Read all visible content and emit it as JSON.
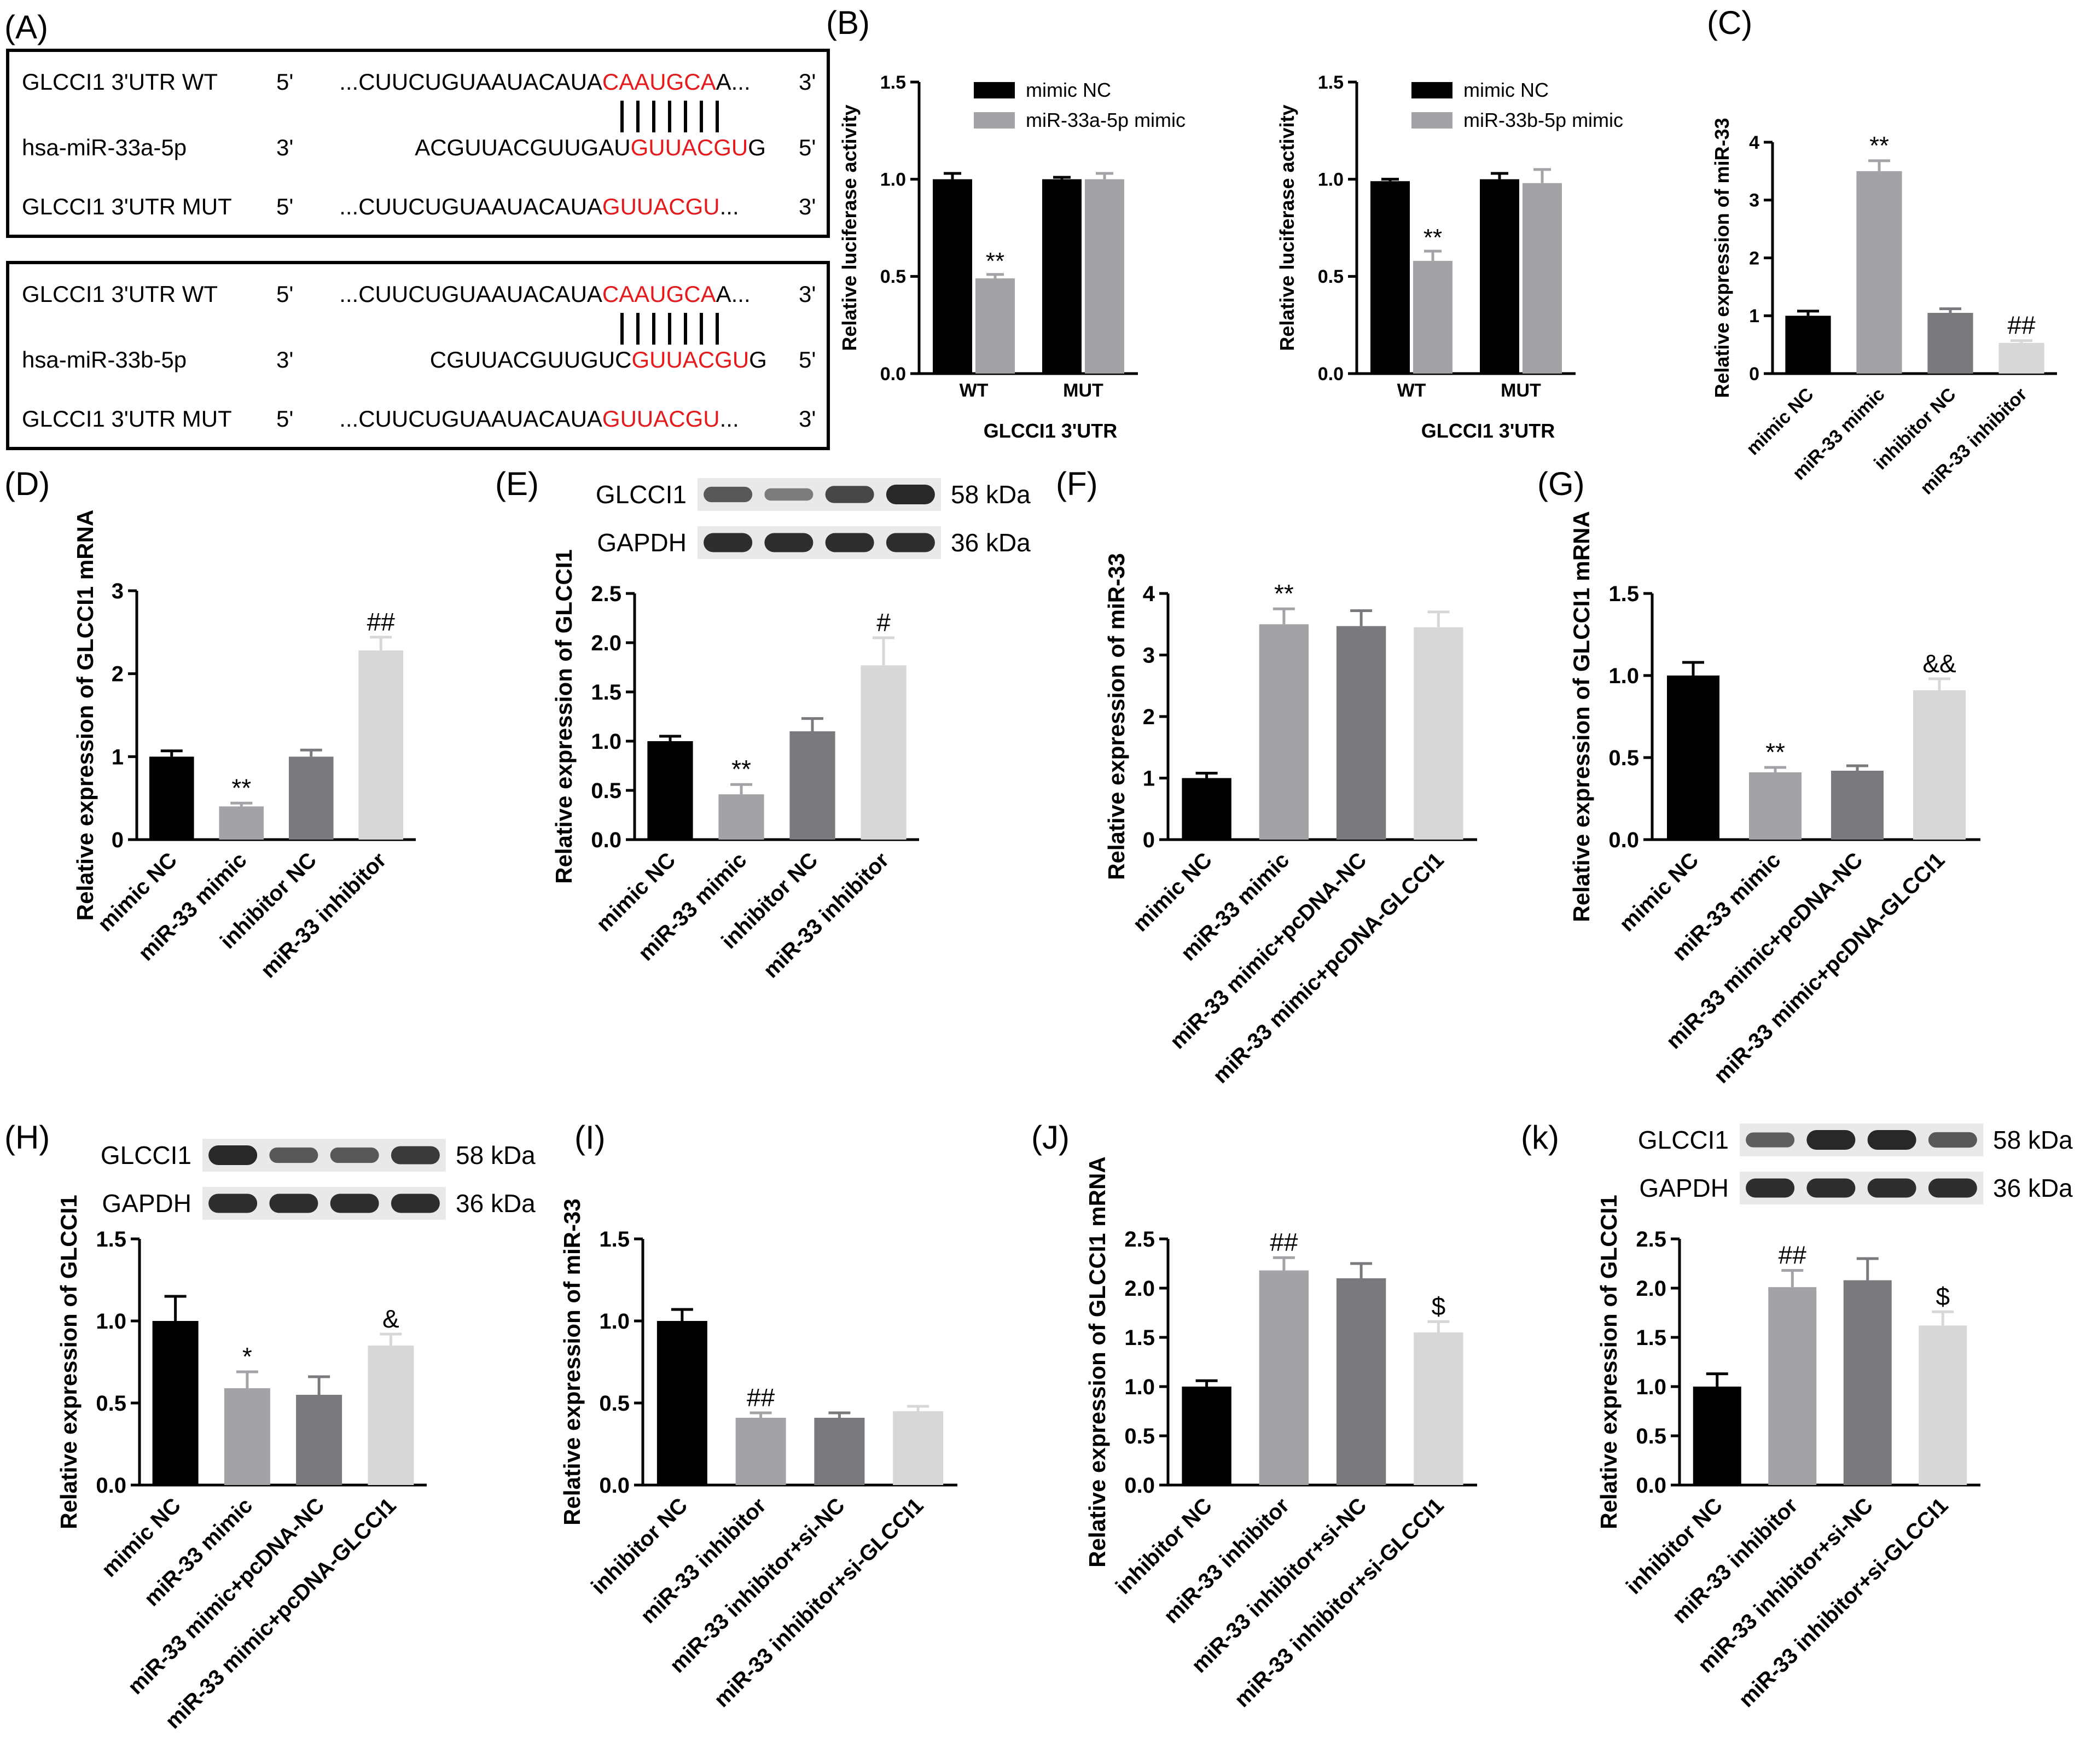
{
  "colors": {
    "black": "#000000",
    "gray": "#a3a3a7",
    "darkgray": "#7a7a7e",
    "lightgray": "#d7d7d9",
    "red": "#e41a1c",
    "panel_border": "#000000"
  },
  "panelA": {
    "letter": "(A)",
    "box1": {
      "rows": [
        {
          "label": "GLCCI1 3'UTR WT",
          "end5": "5'",
          "seq_black": "...CUUCUGUAAUACAUA",
          "seq_red": "CAAUGCA",
          "seq_tail": "A...",
          "end3": "3'"
        },
        {
          "label": "hsa-miR-33a-5p",
          "end5": "3'",
          "seq_black": "ACGUUACGUUGAU",
          "seq_red": "GUUACGU",
          "seq_tail": "G",
          "end3": "5'"
        },
        {
          "label": "GLCCI1 3'UTR MUT",
          "end5": "5'",
          "seq_black": "...CUUCUGUAAUACAUA",
          "seq_red": "GUUACGU",
          "seq_tail": "...",
          "end3": "3'"
        }
      ]
    },
    "box2": {
      "rows": [
        {
          "label": "GLCCI1 3'UTR WT",
          "end5": "5'",
          "seq_black": "...CUUCUGUAAUACAUA",
          "seq_red": "CAAUGCA",
          "seq_tail": "A...",
          "end3": "3'"
        },
        {
          "label": "hsa-miR-33b-5p",
          "end5": "3'",
          "seq_black": "CGUUACGUUGUC",
          "seq_red": "GUUACGU",
          "seq_tail": "G",
          "end3": "5'"
        },
        {
          "label": "GLCCI1 3'UTR MUT",
          "end5": "5'",
          "seq_black": "...CUUCUGUAAUACAUA",
          "seq_red": "GUUACGU",
          "seq_tail": "...",
          "end3": "3'"
        }
      ]
    }
  },
  "chart_data": [
    {
      "id": "B1",
      "letter": "(B)",
      "type": "bar",
      "grouped": true,
      "ylabel": "Relative luciferase activity",
      "xlabel": "GLCCI1 3'UTR",
      "categories": [
        "WT",
        "MUT"
      ],
      "ylim": [
        0,
        1.5
      ],
      "ticks": [
        "0.0",
        "0.5",
        "1.0",
        "1.5"
      ],
      "series": [
        {
          "name": "mimic NC",
          "color": "black",
          "values": [
            1.0,
            1.0
          ],
          "errors": [
            0.03,
            0.01
          ],
          "marks": [
            "",
            ""
          ]
        },
        {
          "name": "miR-33a-5p mimic",
          "color": "gray",
          "values": [
            0.49,
            1.0
          ],
          "errors": [
            0.02,
            0.03
          ],
          "marks": [
            "**",
            ""
          ]
        }
      ]
    },
    {
      "id": "B2",
      "type": "bar",
      "grouped": true,
      "ylabel": "Relative luciferase activity",
      "xlabel": "GLCCI1 3'UTR",
      "categories": [
        "WT",
        "MUT"
      ],
      "ylim": [
        0,
        1.5
      ],
      "ticks": [
        "0.0",
        "0.5",
        "1.0",
        "1.5"
      ],
      "series": [
        {
          "name": "mimic NC",
          "color": "black",
          "values": [
            0.99,
            1.0
          ],
          "errors": [
            0.01,
            0.03
          ],
          "marks": [
            "",
            ""
          ]
        },
        {
          "name": "miR-33b-5p mimic",
          "color": "gray",
          "values": [
            0.58,
            0.98
          ],
          "errors": [
            0.05,
            0.07
          ],
          "marks": [
            "**",
            ""
          ]
        }
      ]
    },
    {
      "id": "C",
      "letter": "(C)",
      "type": "bar",
      "ylabel": "Relative expression of miR-33",
      "categories": [
        "mimic NC",
        "miR-33 mimic",
        "inhibitor NC",
        "miR-33 inhibitor"
      ],
      "ylim": [
        0,
        4
      ],
      "ticks": [
        "0",
        "1",
        "2",
        "3",
        "4"
      ],
      "values": [
        1.0,
        3.5,
        1.05,
        0.53
      ],
      "errors": [
        0.08,
        0.18,
        0.07,
        0.04
      ],
      "colors": [
        "black",
        "gray",
        "darkgray",
        "lightgray"
      ],
      "marks": [
        "",
        "**",
        "",
        "##"
      ]
    },
    {
      "id": "D",
      "letter": "(D)",
      "type": "bar",
      "ylabel": "Relative expression of GLCCI1 mRNA",
      "categories": [
        "mimic NC",
        "miR-33 mimic",
        "inhibitor NC",
        "miR-33 inhibitor"
      ],
      "ylim": [
        0,
        3
      ],
      "ticks": [
        "0",
        "1",
        "2",
        "3"
      ],
      "values": [
        1.0,
        0.4,
        1.0,
        2.28
      ],
      "errors": [
        0.07,
        0.04,
        0.08,
        0.16
      ],
      "colors": [
        "black",
        "gray",
        "darkgray",
        "lightgray"
      ],
      "marks": [
        "",
        "**",
        "",
        "##"
      ]
    },
    {
      "id": "E",
      "letter": "(E)",
      "type": "bar",
      "ylabel": "Relative expression of GLCCI1",
      "categories": [
        "mimic NC",
        "miR-33 mimic",
        "inhibitor NC",
        "miR-33 inhibitor"
      ],
      "ylim": [
        0,
        2.5
      ],
      "ticks": [
        "0.0",
        "0.5",
        "1.0",
        "1.5",
        "2.0",
        "2.5"
      ],
      "values": [
        1.0,
        0.46,
        1.1,
        1.77
      ],
      "errors": [
        0.05,
        0.1,
        0.13,
        0.28
      ],
      "colors": [
        "black",
        "gray",
        "darkgray",
        "lightgray"
      ],
      "marks": [
        "",
        "**",
        "",
        "#"
      ],
      "blot": {
        "rows": [
          {
            "label": "GLCCI1",
            "kda": "58 kDa",
            "intensity": [
              0.6,
              0.3,
              0.75,
              1.0
            ]
          },
          {
            "label": "GAPDH",
            "kda": "36 kDa",
            "intensity": [
              0.95,
              0.95,
              0.95,
              0.95
            ]
          }
        ]
      }
    },
    {
      "id": "F",
      "letter": "(F)",
      "type": "bar",
      "ylabel": "Relative expression of miR-33",
      "categories": [
        "mimic NC",
        "miR-33 mimic",
        "miR-33 mimic+pcDNA-NC",
        "miR-33 mimic+pcDNA-GLCCI1"
      ],
      "ylim": [
        0,
        4
      ],
      "ticks": [
        "0",
        "1",
        "2",
        "3",
        "4"
      ],
      "values": [
        1.0,
        3.5,
        3.47,
        3.45
      ],
      "errors": [
        0.08,
        0.25,
        0.25,
        0.25
      ],
      "colors": [
        "black",
        "gray",
        "darkgray",
        "lightgray"
      ],
      "marks": [
        "",
        "**",
        "",
        ""
      ]
    },
    {
      "id": "G",
      "letter": "(G)",
      "type": "bar",
      "ylabel": "Relative expression of GLCCI1 mRNA",
      "categories": [
        "mimic NC",
        "miR-33 mimic",
        "miR-33 mimic+pcDNA-NC",
        "miR-33 mimic+pcDNA-GLCCI1"
      ],
      "ylim": [
        0,
        1.5
      ],
      "ticks": [
        "0.0",
        "0.5",
        "1.0",
        "1.5"
      ],
      "values": [
        1.0,
        0.41,
        0.42,
        0.91
      ],
      "errors": [
        0.08,
        0.03,
        0.03,
        0.07
      ],
      "colors": [
        "black",
        "gray",
        "darkgray",
        "lightgray"
      ],
      "marks": [
        "",
        "**",
        "",
        "&&"
      ]
    },
    {
      "id": "H",
      "letter": "(H)",
      "type": "bar",
      "ylabel": "Relative expression of GLCCI1",
      "categories": [
        "mimic NC",
        "miR-33 mimic",
        "miR-33 mimic+pcDNA-NC",
        "miR-33 mimic+pcDNA-GLCCI1"
      ],
      "ylim": [
        0,
        1.5
      ],
      "ticks": [
        "0.0",
        "0.5",
        "1.0",
        "1.5"
      ],
      "values": [
        1.0,
        0.59,
        0.55,
        0.85
      ],
      "errors": [
        0.15,
        0.1,
        0.11,
        0.07
      ],
      "colors": [
        "black",
        "gray",
        "darkgray",
        "lightgray"
      ],
      "marks": [
        "",
        "*",
        "",
        "&"
      ],
      "blot": {
        "rows": [
          {
            "label": "GLCCI1",
            "kda": "58 kDa",
            "intensity": [
              1.0,
              0.6,
              0.6,
              0.85
            ]
          },
          {
            "label": "GAPDH",
            "kda": "36 kDa",
            "intensity": [
              0.95,
              0.95,
              0.95,
              0.95
            ]
          }
        ]
      }
    },
    {
      "id": "I",
      "letter": "(I)",
      "type": "bar",
      "ylabel": "Relative expression of miR-33",
      "categories": [
        "inhibitor NC",
        "miR-33 inhibitor",
        "miR-33 inhibitor+si-NC",
        "miR-33 inhibitor+si-GLCCI1"
      ],
      "ylim": [
        0,
        1.5
      ],
      "ticks": [
        "0.0",
        "0.5",
        "1.0",
        "1.5"
      ],
      "values": [
        1.0,
        0.41,
        0.41,
        0.45
      ],
      "errors": [
        0.07,
        0.03,
        0.03,
        0.03
      ],
      "colors": [
        "black",
        "gray",
        "darkgray",
        "lightgray"
      ],
      "marks": [
        "",
        "##",
        "",
        ""
      ]
    },
    {
      "id": "J",
      "letter": "(J)",
      "type": "bar",
      "ylabel": "Relative expression of GLCCI1 mRNA",
      "categories": [
        "inhibitor NC",
        "miR-33 inhibitor",
        "miR-33 inhibitor+si-NC",
        "miR-33 inhibitor+si-GLCCI1"
      ],
      "ylim": [
        0,
        2.5
      ],
      "ticks": [
        "0.0",
        "0.5",
        "1.0",
        "1.5",
        "2.0",
        "2.5"
      ],
      "values": [
        1.0,
        2.18,
        2.1,
        1.55
      ],
      "errors": [
        0.06,
        0.13,
        0.15,
        0.11
      ],
      "colors": [
        "black",
        "gray",
        "darkgray",
        "lightgray"
      ],
      "marks": [
        "",
        "##",
        "",
        "$"
      ]
    },
    {
      "id": "K",
      "letter": "(k)",
      "type": "bar",
      "ylabel": "Relative expression of GLCCI1",
      "categories": [
        "inhibitor NC",
        "miR-33 inhibitor",
        "miR-33 inhibitor+si-NC",
        "miR-33 inhibitor+si-GLCCI1"
      ],
      "ylim": [
        0,
        2.5
      ],
      "ticks": [
        "0.0",
        "0.5",
        "1.0",
        "1.5",
        "2.0",
        "2.5"
      ],
      "values": [
        1.0,
        2.01,
        2.08,
        1.62
      ],
      "errors": [
        0.13,
        0.17,
        0.22,
        0.14
      ],
      "colors": [
        "black",
        "gray",
        "darkgray",
        "lightgray"
      ],
      "marks": [
        "",
        "##",
        "",
        "$"
      ],
      "blot": {
        "rows": [
          {
            "label": "GLCCI1",
            "kda": "58 kDa",
            "intensity": [
              0.55,
              1.0,
              1.0,
              0.6
            ]
          },
          {
            "label": "GAPDH",
            "kda": "36 kDa",
            "intensity": [
              0.95,
              0.95,
              0.95,
              0.95
            ]
          }
        ]
      }
    }
  ]
}
